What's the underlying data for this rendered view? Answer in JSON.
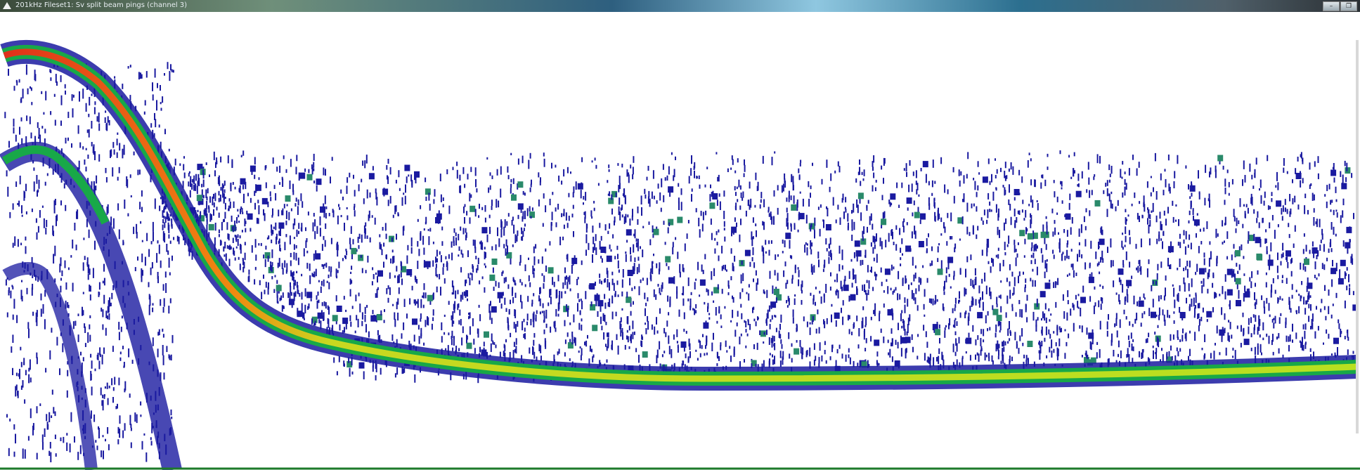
{
  "window": {
    "title": "201kHz Fileset1: Sv split beam pings (channel 3)"
  }
}
